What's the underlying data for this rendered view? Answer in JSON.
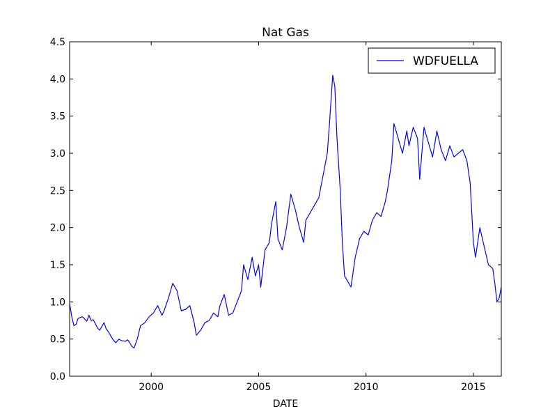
{
  "chart_data": {
    "type": "line",
    "title": "Nat Gas",
    "xlabel": "DATE",
    "ylabel": "",
    "xlim": [
      1996.2,
      2016.3
    ],
    "ylim": [
      0.0,
      4.5
    ],
    "x_ticks": [
      2000,
      2005,
      2010,
      2015
    ],
    "x_tick_labels": [
      "2000",
      "2005",
      "2010",
      "2015"
    ],
    "y_ticks": [
      0.0,
      0.5,
      1.0,
      1.5,
      2.0,
      2.5,
      3.0,
      3.5,
      4.0,
      4.5
    ],
    "y_tick_labels": [
      "0.0",
      "0.5",
      "1.0",
      "1.5",
      "2.0",
      "2.5",
      "3.0",
      "3.5",
      "4.0",
      "4.5"
    ],
    "grid": false,
    "legend_position": "top-right",
    "series": [
      {
        "name": "WDFUELLA",
        "color": "#0000ff",
        "x": [
          1996.2,
          1996.3,
          1996.4,
          1996.5,
          1996.6,
          1996.8,
          1997.0,
          1997.1,
          1997.2,
          1997.3,
          1997.5,
          1997.6,
          1997.8,
          1997.9,
          1998.0,
          1998.1,
          1998.2,
          1998.35,
          1998.5,
          1998.6,
          1998.8,
          1998.9,
          1999.0,
          1999.1,
          1999.2,
          1999.35,
          1999.5,
          1999.7,
          1999.9,
          2000.1,
          2000.3,
          2000.5,
          2000.6,
          2000.8,
          2001.0,
          2001.2,
          2001.4,
          2001.6,
          2001.8,
          2002.0,
          2002.1,
          2002.3,
          2002.5,
          2002.7,
          2002.9,
          2003.1,
          2003.2,
          2003.4,
          2003.6,
          2003.8,
          2004.0,
          2004.2,
          2004.3,
          2004.5,
          2004.7,
          2004.85,
          2005.0,
          2005.1,
          2005.3,
          2005.5,
          2005.6,
          2005.8,
          2005.9,
          2006.1,
          2006.3,
          2006.5,
          2006.7,
          2006.9,
          2007.1,
          2007.2,
          2007.4,
          2007.6,
          2007.8,
          2008.0,
          2008.2,
          2008.3,
          2008.45,
          2008.55,
          2008.65,
          2008.8,
          2008.9,
          2009.0,
          2009.1,
          2009.3,
          2009.5,
          2009.7,
          2009.9,
          2010.1,
          2010.3,
          2010.5,
          2010.7,
          2010.9,
          2011.0,
          2011.2,
          2011.3,
          2011.5,
          2011.7,
          2011.9,
          2012.0,
          2012.2,
          2012.4,
          2012.5,
          2012.7,
          2012.9,
          2013.1,
          2013.3,
          2013.5,
          2013.7,
          2013.9,
          2014.1,
          2014.3,
          2014.5,
          2014.7,
          2014.85,
          2015.0,
          2015.1,
          2015.3,
          2015.5,
          2015.7,
          2015.9,
          2016.0,
          2016.1,
          2016.2,
          2016.3
        ],
        "y": [
          0.98,
          0.8,
          0.68,
          0.7,
          0.78,
          0.8,
          0.74,
          0.82,
          0.75,
          0.76,
          0.65,
          0.62,
          0.72,
          0.64,
          0.6,
          0.55,
          0.5,
          0.45,
          0.5,
          0.48,
          0.47,
          0.49,
          0.45,
          0.4,
          0.38,
          0.5,
          0.68,
          0.72,
          0.8,
          0.85,
          0.95,
          0.82,
          0.88,
          1.05,
          1.25,
          1.15,
          0.88,
          0.9,
          0.95,
          0.72,
          0.55,
          0.62,
          0.72,
          0.75,
          0.85,
          0.8,
          0.95,
          1.1,
          0.82,
          0.85,
          1.0,
          1.15,
          1.5,
          1.3,
          1.6,
          1.35,
          1.5,
          1.2,
          1.7,
          1.8,
          2.05,
          2.35,
          1.85,
          1.7,
          2.0,
          2.45,
          2.25,
          2.0,
          1.8,
          2.1,
          2.2,
          2.3,
          2.4,
          2.7,
          3.0,
          3.4,
          4.05,
          3.9,
          3.2,
          2.5,
          1.8,
          1.35,
          1.3,
          1.2,
          1.6,
          1.85,
          1.95,
          1.9,
          2.1,
          2.2,
          2.15,
          2.35,
          2.5,
          2.9,
          3.4,
          3.2,
          3.0,
          3.3,
          3.1,
          3.35,
          3.2,
          2.65,
          3.35,
          3.15,
          2.95,
          3.3,
          3.05,
          2.9,
          3.1,
          2.95,
          3.0,
          3.05,
          2.9,
          2.6,
          1.8,
          1.6,
          2.0,
          1.75,
          1.5,
          1.45,
          1.25,
          1.0,
          1.05,
          1.2
        ]
      }
    ]
  }
}
